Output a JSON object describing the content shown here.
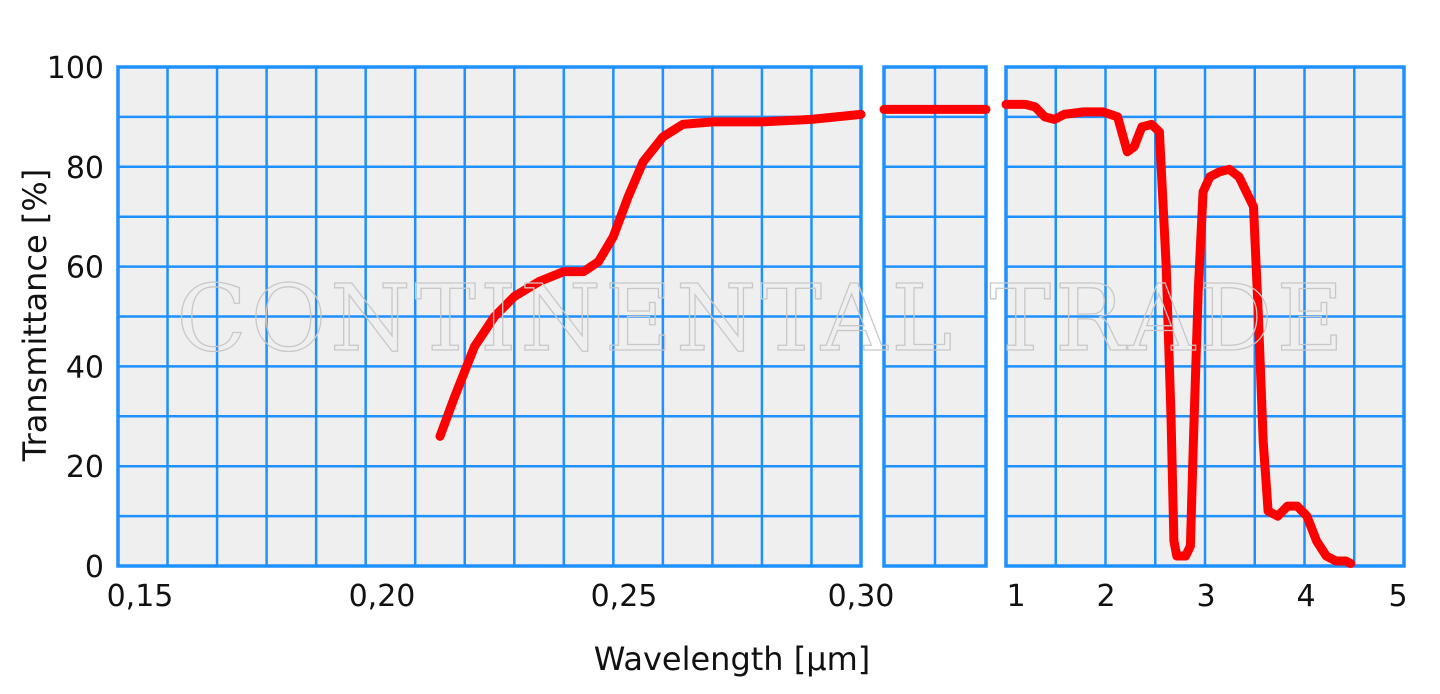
{
  "chart_data": {
    "type": "line",
    "xlabel": "Wavelength  [µm]",
    "ylabel": "Transmittance  [%]",
    "ylim": [
      0,
      100
    ],
    "yticks": [
      "0",
      "20",
      "40",
      "60",
      "80",
      "100"
    ],
    "grid": true,
    "watermark": "CONTINENTAL TRADE",
    "colors": {
      "line": "#ff0000",
      "grid": "#1e90ff",
      "plot_bg": "#efefef"
    },
    "panels": [
      {
        "name": "uv",
        "xlim": [
          0.15,
          0.3
        ],
        "xticks": [
          "0,15",
          "0,20",
          "0,25",
          "0,30"
        ],
        "points": [
          [
            0.215,
            26
          ],
          [
            0.218,
            34
          ],
          [
            0.222,
            44
          ],
          [
            0.226,
            50
          ],
          [
            0.23,
            54
          ],
          [
            0.235,
            57
          ],
          [
            0.24,
            59
          ],
          [
            0.244,
            59
          ],
          [
            0.247,
            61
          ],
          [
            0.25,
            66
          ],
          [
            0.253,
            74
          ],
          [
            0.256,
            81
          ],
          [
            0.26,
            86
          ],
          [
            0.264,
            88.5
          ],
          [
            0.27,
            89
          ],
          [
            0.28,
            89
          ],
          [
            0.29,
            89.5
          ],
          [
            0.3,
            90.5
          ]
        ]
      },
      {
        "name": "mid",
        "xlim": [
          0.3,
          0.35
        ],
        "xticks": [],
        "points": [
          [
            0.3,
            91.5
          ],
          [
            0.35,
            91.5
          ]
        ]
      },
      {
        "name": "ir",
        "xlim": [
          0.9,
          5.0
        ],
        "xticks": [
          "1",
          "2",
          "3",
          "4",
          "5"
        ],
        "points": [
          [
            0.9,
            92.5
          ],
          [
            1.0,
            92.5
          ],
          [
            1.1,
            92.5
          ],
          [
            1.2,
            92
          ],
          [
            1.3,
            90
          ],
          [
            1.4,
            89.5
          ],
          [
            1.5,
            90.5
          ],
          [
            1.7,
            91
          ],
          [
            1.9,
            91
          ],
          [
            2.05,
            90
          ],
          [
            2.15,
            83
          ],
          [
            2.22,
            84
          ],
          [
            2.3,
            88
          ],
          [
            2.4,
            88.5
          ],
          [
            2.48,
            87
          ],
          [
            2.55,
            60
          ],
          [
            2.6,
            30
          ],
          [
            2.63,
            5
          ],
          [
            2.66,
            2
          ],
          [
            2.75,
            2
          ],
          [
            2.8,
            4
          ],
          [
            2.83,
            25
          ],
          [
            2.88,
            55
          ],
          [
            2.93,
            75
          ],
          [
            3.0,
            78
          ],
          [
            3.1,
            79
          ],
          [
            3.2,
            79.5
          ],
          [
            3.3,
            78
          ],
          [
            3.45,
            72
          ],
          [
            3.5,
            50
          ],
          [
            3.55,
            25
          ],
          [
            3.6,
            11
          ],
          [
            3.7,
            10
          ],
          [
            3.8,
            12
          ],
          [
            3.9,
            12
          ],
          [
            4.0,
            10
          ],
          [
            4.1,
            5
          ],
          [
            4.2,
            2
          ],
          [
            4.3,
            1
          ],
          [
            4.4,
            1
          ],
          [
            4.45,
            0.5
          ]
        ]
      }
    ]
  }
}
